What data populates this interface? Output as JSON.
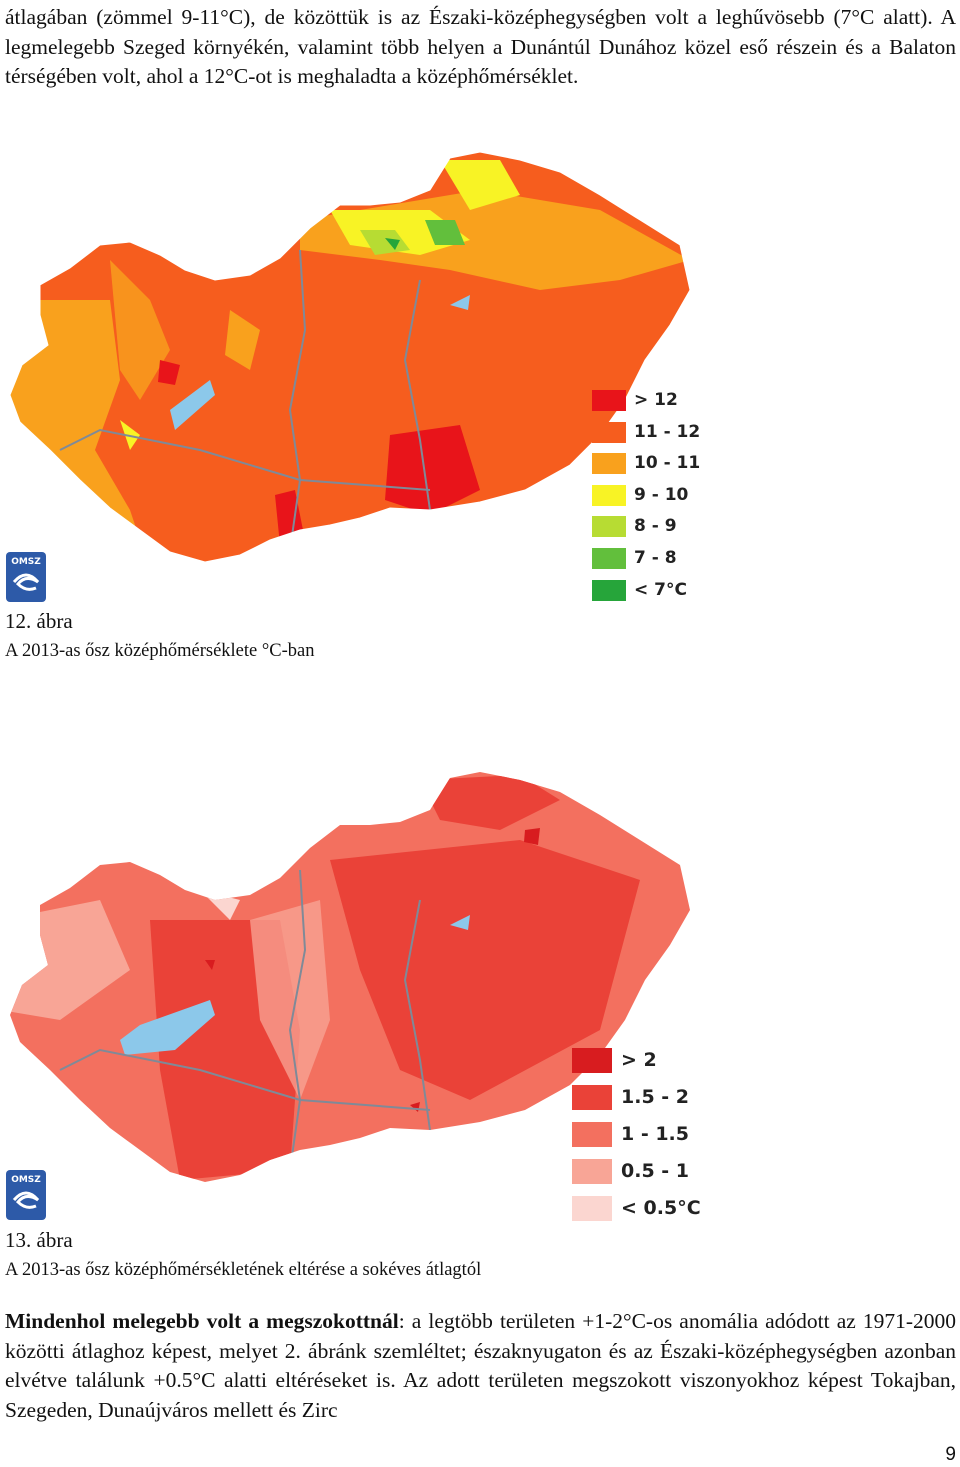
{
  "top_paragraph": "átlagában (zömmel 9-11°C), de közöttük is az Északi-középhegységben volt a leghűvösebb (7°C alatt). A legmelegebb Szeged környékén, valamint több helyen a Dunántúl Dunához közel eső részein és a Balaton térségében volt, ahol a 12°C-ot is meghaladta a középhőmérséklet.",
  "figure12": {
    "logo_text": "OMSZ",
    "number": "12. ábra",
    "caption": "A 2013-as ősz középhőmérséklete °C-ban",
    "legend": [
      {
        "label": "> 12",
        "color": "#e8141a"
      },
      {
        "label": "11 - 12",
        "color": "#f65d1e"
      },
      {
        "label": "10 - 11",
        "color": "#f9a11d"
      },
      {
        "label": "9 - 10",
        "color": "#f8f325"
      },
      {
        "label": "8 - 9",
        "color": "#b7dc33"
      },
      {
        "label": "7 - 8",
        "color": "#62bf3c"
      },
      {
        "label": "< 7°C",
        "color": "#26a53a"
      }
    ]
  },
  "figure13": {
    "logo_text": "OMSZ",
    "number": "13. ábra",
    "caption": "A 2013-as ősz középhőmérsékletének eltérése a sokéves átlagtól",
    "legend": [
      {
        "label": "> 2",
        "color": "#d81c1f"
      },
      {
        "label": "1.5 - 2",
        "color": "#ea4238"
      },
      {
        "label": "1 - 1.5",
        "color": "#f3705f"
      },
      {
        "label": "0.5 - 1",
        "color": "#f8a596"
      },
      {
        "label": "< 0.5°C",
        "color": "#fbd6d0"
      }
    ]
  },
  "bottom_paragraph": {
    "bold": "Mindenhol melegebb volt a megszokottnál",
    "rest": ": a legtöbb területen +1-2°C-os anomália adódott az 1971-2000 közötti átlaghoz képest, melyet 2. ábránk szemléltet; északnyugaton és az Északi-középhegységben azonban elvétve találunk +0.5°C alatti eltéréseket is. Az adott területen megszokott viszonyokhoz képest Tokajban, Szegeden, Dunaújváros mellett és Zirc"
  },
  "page_number": "9",
  "colors": {
    "water": "#8cc8ea",
    "border": "#7f8a98"
  }
}
